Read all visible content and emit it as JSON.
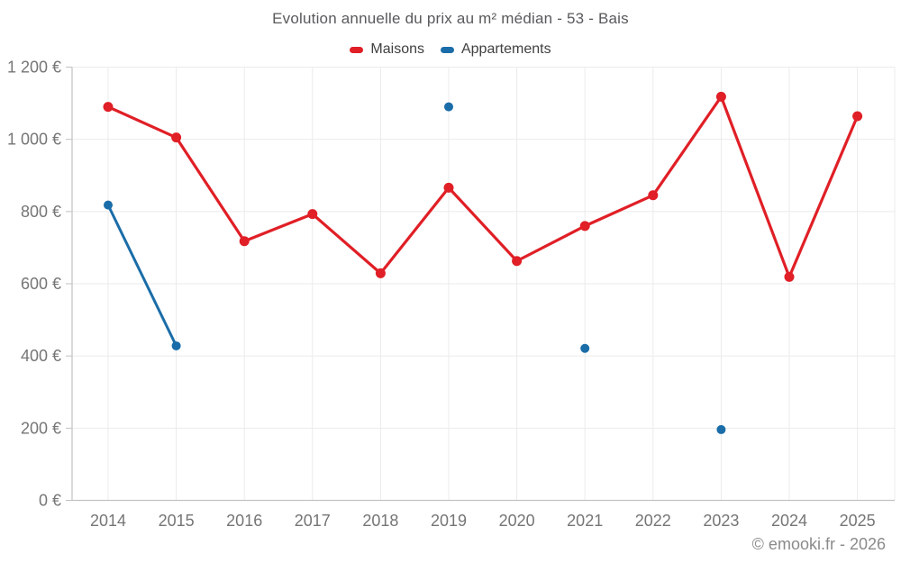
{
  "footer": {
    "copyright": "© emooki.fr - 2026"
  },
  "chart_data": {
    "type": "line",
    "title": "Evolution annuelle du prix au m² médian - 53 - Bais",
    "categories": [
      "2014",
      "2015",
      "2016",
      "2017",
      "2018",
      "2019",
      "2020",
      "2021",
      "2022",
      "2023",
      "2024",
      "2025"
    ],
    "series": [
      {
        "name": "Maisons",
        "color": "#e01f26",
        "values": [
          1090,
          1005,
          718,
          793,
          629,
          866,
          663,
          760,
          845,
          1118,
          619,
          1064
        ]
      },
      {
        "name": "Appartements",
        "color": "#1a6da8",
        "values": [
          818,
          428,
          null,
          null,
          null,
          1090,
          null,
          421,
          null,
          196,
          null,
          null
        ]
      }
    ],
    "xlabel": "",
    "ylabel": "",
    "ylim": [
      0,
      1200
    ],
    "y_tick_step": 200,
    "y_tick_labels": [
      "0 €",
      "200 €",
      "400 €",
      "600 €",
      "800 €",
      "1 000 €",
      "1 200 €"
    ],
    "grid": true,
    "legend_position": "top",
    "marker": "circle",
    "colors": {
      "gridline": "#ebebeb",
      "axis_line": "#c2c2c2",
      "tick_label": "#757575",
      "background": "#ffffff"
    }
  }
}
